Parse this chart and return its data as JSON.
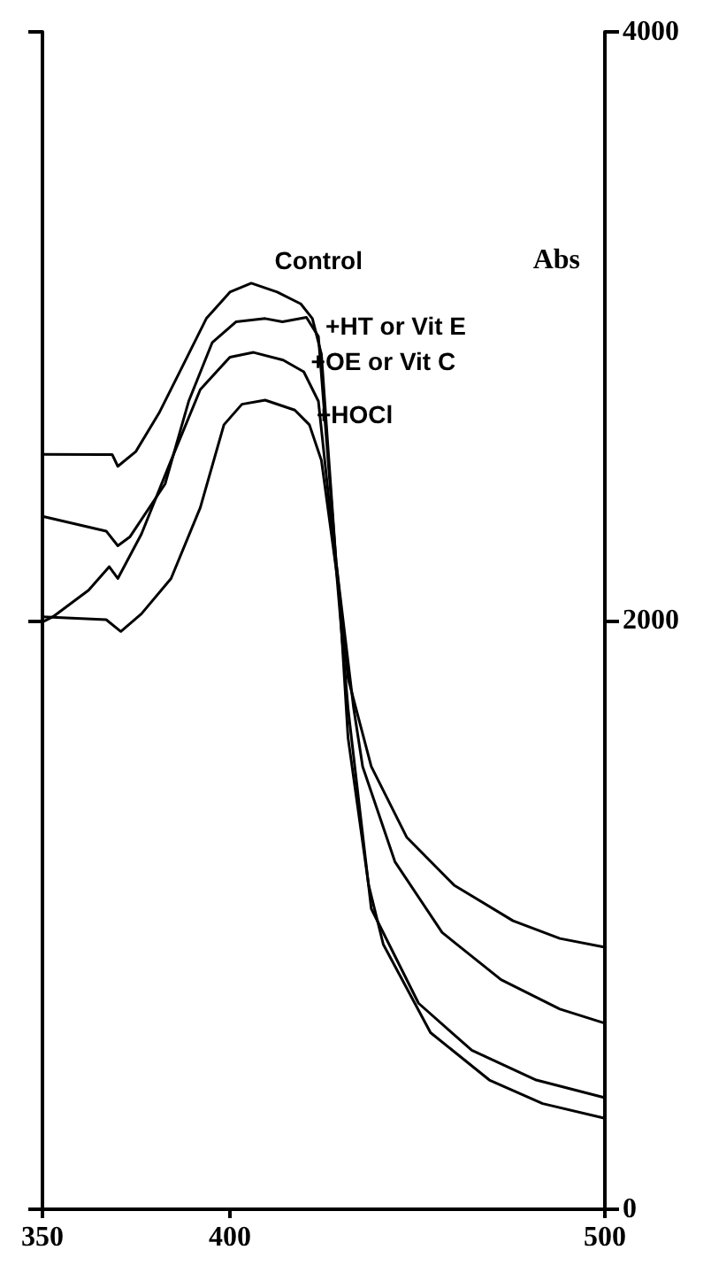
{
  "chart_data": {
    "type": "line",
    "ylabel": "Abs",
    "xlim": [
      350,
      500
    ],
    "xticks": [
      350,
      400,
      500
    ],
    "ylim": [
      0,
      4000
    ],
    "yticks": [
      0,
      2000,
      4000
    ],
    "grid": false,
    "legend": false,
    "marker": "none",
    "line_style": "solid",
    "tick_labels": "xy",
    "series": [
      {
        "name": "Control",
        "color": "#000000",
        "x": [
          350,
          366,
          368.6,
          370.1,
          374.9,
          381.1,
          387.4,
          393.7,
          400,
          405.7,
          412.6,
          418.9,
          422,
          424.4,
          428.3,
          431.5,
          437.7,
          447.2,
          459.8,
          475.5,
          488,
          500
        ],
        "values": [
          2565,
          2564,
          2564,
          2524,
          2574,
          2705,
          2865,
          3026,
          3116,
          3146,
          3116,
          3076,
          3026,
          2905,
          2201,
          1804,
          1504,
          1263,
          1101,
          980,
          920,
          890
        ]
      },
      {
        "name": "+HT or Vit E",
        "color": "#000000",
        "x": [
          350,
          367,
          370.1,
          373.3,
          382.7,
          389,
          395.3,
          401.6,
          409.4,
          414,
          420.4,
          423.6,
          428.3,
          433,
          435.4,
          444,
          456.6,
          472.3,
          488,
          500
        ],
        "values": [
          2354,
          2304,
          2254,
          2284,
          2464,
          2745,
          2945,
          3015,
          3026,
          3015,
          3030,
          2965,
          2201,
          1702,
          1504,
          1181,
          940,
          780,
          680,
          632
        ]
      },
      {
        "name": "+OE or Vit C",
        "color": "#000000",
        "x": [
          350,
          352.8,
          362.3,
          367.8,
          370.1,
          376.4,
          384.3,
          392.1,
          400,
          406.3,
          414.2,
          419.7,
          423.6,
          428.3,
          431.5,
          437.7,
          450.3,
          464.5,
          481.7,
          500
        ],
        "values": [
          1995,
          2013,
          2103,
          2183,
          2143,
          2294,
          2544,
          2785,
          2895,
          2911,
          2885,
          2845,
          2745,
          2183,
          1702,
          1021,
          700,
          540,
          439,
          379
        ]
      },
      {
        "name": "+HOCl",
        "color": "#000000",
        "x": [
          350,
          367,
          370.9,
          376.4,
          384.3,
          392.1,
          398.4,
          403.2,
          409.4,
          417.3,
          421.2,
          424.4,
          429.1,
          431.5,
          437,
          440.9,
          453.5,
          469.2,
          483.4,
          500
        ],
        "values": [
          2013,
          2003,
          1963,
          2023,
          2143,
          2384,
          2665,
          2735,
          2749,
          2715,
          2665,
          2544,
          2103,
          1602,
          1101,
          900,
          600,
          439,
          359,
          309
        ]
      }
    ]
  }
}
